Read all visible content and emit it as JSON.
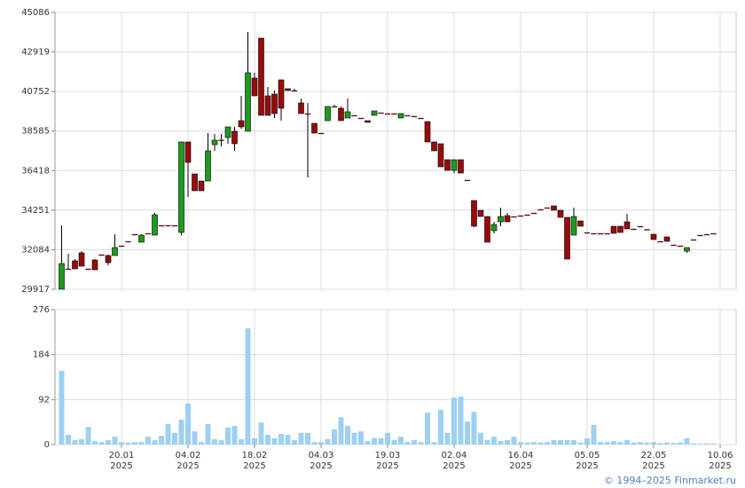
{
  "chart_data": {
    "type": "candlestick",
    "open": [
      29917,
      31035,
      31473,
      31910,
      31035,
      31520,
      31814,
      31764,
      31764,
      32299,
      32542,
      32931,
      32494,
      32980,
      32883,
      33418,
      33418,
      33418,
      33029,
      37988,
      36237,
      35848,
      35848,
      37842,
      38100,
      38231,
      38572,
      39155,
      38572,
      41489,
      43676,
      40516,
      40613,
      41391,
      40905,
      40808,
      40127,
      39544,
      39009,
      38474,
      39155,
      39933,
      39835,
      39301,
      39447,
      39301,
      39155,
      39447,
      39592,
      39544,
      39544,
      39301,
      39447,
      39400,
      39300,
      39106,
      37988,
      37891,
      37016,
      36432,
      37016,
      35900,
      34779,
      34244,
      33904,
      33126,
      33612,
      33952,
      33904,
      33952,
      34001,
      34098,
      34293,
      34390,
      34487,
      34244,
      33855,
      32883,
      33661,
      33029,
      32980,
      32980,
      32980,
      33369,
      33369,
      33612,
      33223,
      33369,
      33200,
      32931,
      32542,
      32785,
      32348,
      32299,
      32008,
      32640,
      32883,
      32931,
      32980
    ],
    "high": [
      33417,
      31861,
      31570,
      32008,
      31035,
      31570,
      31814,
      31814,
      32931,
      32299,
      32542,
      32931,
      32931,
      32980,
      34098,
      33418,
      33418,
      33418,
      37988,
      37988,
      36237,
      35848,
      38474,
      38426,
      38426,
      38815,
      38815,
      40516,
      44017,
      41780,
      43676,
      41002,
      40808,
      41391,
      40905,
      40905,
      40370,
      40127,
      39009,
      38474,
      39933,
      40030,
      39933,
      40370,
      39447,
      39301,
      39155,
      39690,
      39592,
      39544,
      39544,
      39544,
      39447,
      39400,
      39300,
      39106,
      37988,
      37891,
      37016,
      37016,
      37016,
      35900,
      34779,
      34244,
      33904,
      33612,
      34390,
      34098,
      33904,
      33952,
      34001,
      34098,
      34293,
      34390,
      34487,
      34244,
      33855,
      34390,
      33661,
      33029,
      32980,
      32980,
      32980,
      33369,
      33369,
      34049,
      33223,
      33369,
      33200,
      32931,
      32542,
      32785,
      32348,
      32299,
      32202,
      32640,
      32883,
      32931,
      32980
    ],
    "low": [
      29917,
      30986,
      31035,
      31181,
      31035,
      30986,
      31814,
      31230,
      31764,
      32299,
      32542,
      32931,
      32494,
      32980,
      32883,
      33418,
      33418,
      33418,
      32883,
      34973,
      35314,
      35314,
      35848,
      37502,
      37745,
      37891,
      37502,
      38700,
      38572,
      40516,
      39447,
      39447,
      39301,
      39155,
      40808,
      40808,
      39544,
      36043,
      38474,
      38474,
      39155,
      39933,
      39155,
      39301,
      39447,
      39301,
      39060,
      39447,
      39592,
      39544,
      39544,
      39301,
      39447,
      39400,
      39300,
      37988,
      37502,
      36626,
      36432,
      36286,
      36286,
      35900,
      33320,
      33904,
      32494,
      32980,
      33369,
      33612,
      33904,
      33952,
      34001,
      34098,
      34293,
      34390,
      34244,
      33855,
      31570,
      32883,
      33369,
      33029,
      32980,
      32980,
      32980,
      32980,
      33029,
      33223,
      33223,
      33369,
      33200,
      32640,
      32542,
      32542,
      32348,
      32299,
      31910,
      32640,
      32883,
      32931,
      32980
    ],
    "close": [
      31327,
      31035,
      31035,
      31181,
      31035,
      30986,
      31814,
      31375,
      32202,
      32299,
      32542,
      32931,
      32883,
      32980,
      34001,
      33418,
      33418,
      33418,
      37988,
      36870,
      35314,
      35314,
      37502,
      38085,
      38100,
      38815,
      37891,
      38815,
      41780,
      40516,
      39447,
      39447,
      39544,
      39835,
      40808,
      40808,
      39544,
      39544,
      38474,
      38474,
      39933,
      39933,
      39155,
      39641,
      39447,
      39301,
      39060,
      39690,
      39592,
      39544,
      39544,
      39544,
      39447,
      39400,
      39300,
      37988,
      37502,
      36626,
      36432,
      37016,
      36286,
      35900,
      33369,
      33904,
      32494,
      33466,
      33904,
      33612,
      33904,
      33952,
      34001,
      34098,
      34293,
      34390,
      34244,
      33855,
      31570,
      33904,
      33369,
      33029,
      32980,
      32980,
      32980,
      32980,
      33029,
      33223,
      33223,
      33369,
      33200,
      32640,
      32542,
      32542,
      32348,
      32299,
      32202,
      32640,
      32883,
      32931,
      32980
    ],
    "up_color": "#1e9a1e",
    "down_color": "#9a0a0a",
    "ylim": [
      29917,
      45086
    ],
    "yticks": [
      29917,
      32084,
      34251,
      36418,
      38585,
      40752,
      42919,
      45086
    ],
    "xticks": [
      {
        "value": 9,
        "label": [
          "20.01",
          "2025"
        ]
      },
      {
        "value": 19,
        "label": [
          "04.02",
          "2025"
        ]
      },
      {
        "value": 29,
        "label": [
          "18.02",
          "2025"
        ]
      },
      {
        "value": 39,
        "label": [
          "04.03",
          "2025"
        ]
      },
      {
        "value": 49,
        "label": [
          "19.03",
          "2025"
        ]
      },
      {
        "value": 59,
        "label": [
          "02.04",
          "2025"
        ]
      },
      {
        "value": 69,
        "label": [
          "16.04",
          "2025"
        ]
      },
      {
        "value": 79,
        "label": [
          "05.05",
          "2025"
        ]
      },
      {
        "value": 89,
        "label": [
          "22.05",
          "2025"
        ]
      },
      {
        "value": 99,
        "label": [
          "10.06",
          "2025"
        ]
      }
    ],
    "grid": true,
    "volume": {
      "values": [
        151,
        20,
        9,
        11,
        36,
        7,
        5,
        9,
        16,
        5,
        4,
        5,
        5,
        16,
        9,
        18,
        42,
        24,
        51,
        84,
        27,
        5,
        42,
        11,
        9,
        35,
        38,
        11,
        238,
        13,
        45,
        20,
        13,
        22,
        20,
        9,
        24,
        24,
        5,
        5,
        11,
        31,
        56,
        38,
        24,
        27,
        7,
        13,
        13,
        24,
        9,
        16,
        5,
        9,
        5,
        65,
        5,
        71,
        24,
        96,
        98,
        47,
        67,
        24,
        9,
        16,
        7,
        9,
        16,
        5,
        4,
        5,
        4,
        5,
        9,
        9,
        9,
        9,
        4,
        13,
        40,
        5,
        5,
        7,
        5,
        9,
        4,
        5,
        4,
        5,
        3,
        4,
        3,
        4,
        13,
        2,
        2,
        2,
        2
      ],
      "color": "#9dd0f3",
      "ylim": [
        0,
        276
      ],
      "yticks": [
        0,
        92,
        184,
        276
      ]
    }
  },
  "footer": "© 1994–2025 Finmarket.ru"
}
